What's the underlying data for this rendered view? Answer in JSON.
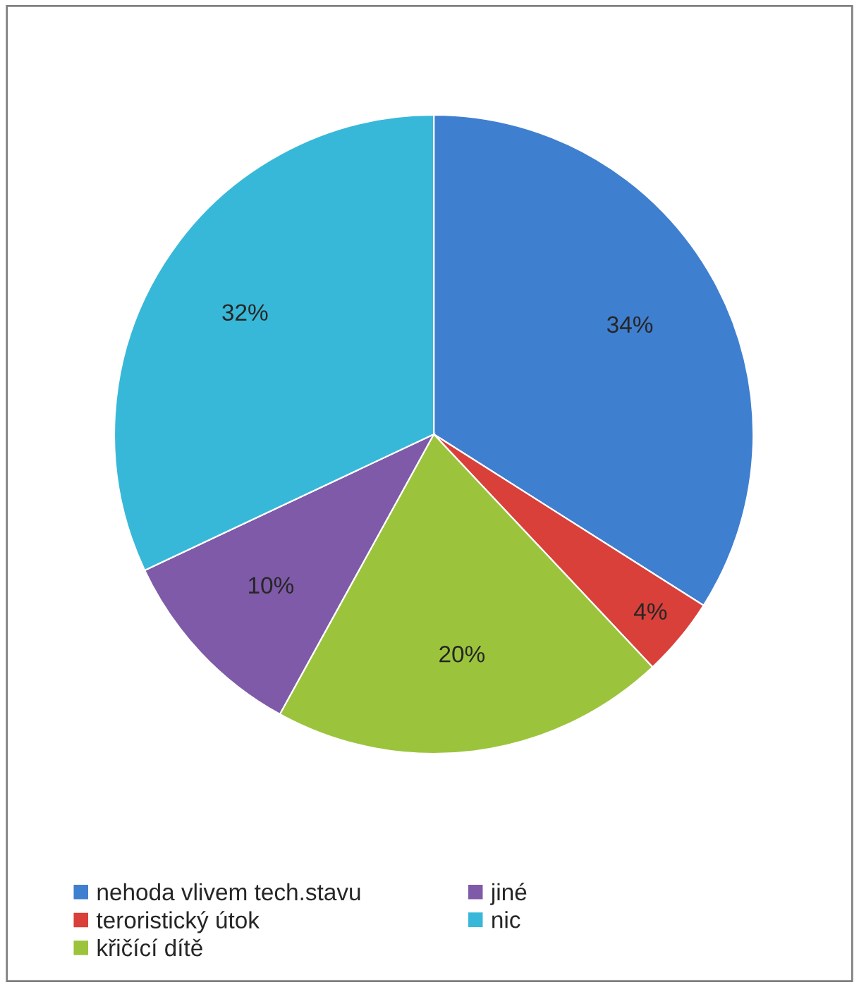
{
  "chart_data": {
    "type": "pie",
    "categories": [
      "nehoda vlivem tech.stavu",
      "teroristický útok",
      "křičící dítě",
      "jiné",
      "nic"
    ],
    "values": [
      34,
      4,
      20,
      10,
      32
    ],
    "colors": [
      "#3f7fd0",
      "#d9403a",
      "#9bc43c",
      "#7f5aa8",
      "#38b8d8"
    ],
    "value_labels": [
      "34%",
      "4%",
      "20%",
      "10%",
      "32%"
    ],
    "legend": "bottom"
  }
}
